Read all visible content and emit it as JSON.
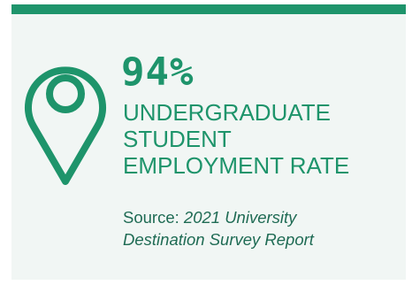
{
  "stat": {
    "value": "94%",
    "label_lines": [
      "UNDERGRADUATE",
      "STUDENT",
      "EMPLOYMENT RATE"
    ]
  },
  "source": {
    "prefix": "Source: ",
    "title_line_1": "2021 University",
    "title_line_2": "Destination Survey Report"
  },
  "icon": "location-pin-icon",
  "colors": {
    "accent": "#1e946b",
    "source_text": "#1f6b54",
    "background": "#f1f6f4"
  }
}
